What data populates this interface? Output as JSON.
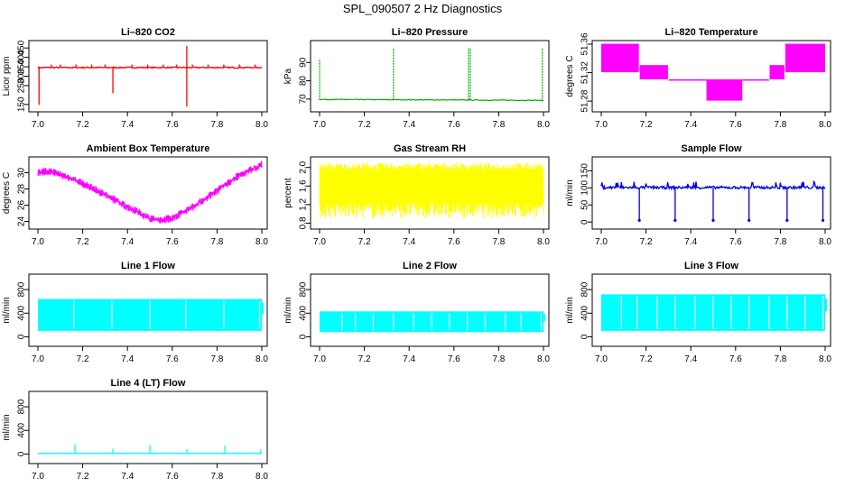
{
  "page_title": "SPL_090507  2 Hz Diagnostics",
  "chart_data": [
    {
      "id": "co2",
      "type": "line",
      "title": "Li–820 CO2",
      "ylabel": "Licor ppm",
      "color": "#ff0000",
      "xlim": [
        7.0,
        8.0
      ],
      "ylim": [
        130,
        470
      ],
      "xticks": [
        "7.0",
        "7.2",
        "7.4",
        "7.6",
        "7.8",
        "8.0"
      ],
      "yticks": [
        150,
        250,
        300,
        350,
        400,
        450
      ],
      "series": [
        {
          "x": [
            7.0,
            7.1,
            7.2,
            7.3,
            7.4,
            7.5,
            7.6,
            7.7,
            7.8,
            7.9,
            8.0
          ],
          "y": [
            345,
            346,
            347,
            346,
            347,
            346,
            348,
            347,
            346,
            347,
            345
          ]
        }
      ],
      "spikes_up": [
        7.06,
        7.1,
        7.17,
        7.24,
        7.3,
        7.42,
        7.49,
        7.56,
        7.62,
        7.69,
        7.76,
        7.83,
        7.9,
        7.97
      ],
      "spikes_down": [
        {
          "x": 7.005,
          "y": 148
        },
        {
          "x": 7.335,
          "y": 210
        },
        {
          "x": 7.665,
          "y": 140
        }
      ]
    },
    {
      "id": "pressure",
      "type": "line",
      "title": "Li–820 Pressure",
      "ylabel": "kPa",
      "color": "#00aa00",
      "xlim": [
        7.0,
        8.0
      ],
      "ylim": [
        65,
        100
      ],
      "xticks": [
        "7.0",
        "7.2",
        "7.4",
        "7.6",
        "7.8",
        "8.0"
      ],
      "yticks": [
        70,
        80,
        90
      ],
      "series": [
        {
          "x": [
            7.0,
            7.2,
            7.4,
            7.6,
            7.8,
            8.0
          ],
          "y": [
            69.8,
            69.7,
            69.6,
            69.5,
            69.5,
            69.3
          ]
        }
      ],
      "spikes_up": [
        7.0,
        7.33,
        7.665,
        7.665,
        7.995
      ]
    },
    {
      "id": "temperature",
      "type": "area",
      "title": "Li–820 Temperature",
      "ylabel": "degrees C",
      "color": "#ff00ff",
      "xlim": [
        7.0,
        8.0
      ],
      "ylim": [
        51.27,
        51.36
      ],
      "xticks": [
        "7.0",
        "7.2",
        "7.4",
        "7.6",
        "7.8",
        "8.0"
      ],
      "yticks": [
        "51.28",
        "51.32",
        "51.36"
      ],
      "bands": [
        {
          "x0": 7.0,
          "x1": 7.17,
          "y0": 51.32,
          "y1": 51.36
        },
        {
          "x0": 7.17,
          "x1": 7.3,
          "y0": 51.31,
          "y1": 51.33
        },
        {
          "x0": 7.3,
          "x1": 7.47,
          "y0": 51.31,
          "y1": 51.31
        },
        {
          "x0": 7.47,
          "x1": 7.63,
          "y0": 51.28,
          "y1": 51.31
        },
        {
          "x0": 7.63,
          "x1": 7.75,
          "y0": 51.31,
          "y1": 51.31
        },
        {
          "x0": 7.75,
          "x1": 7.82,
          "y0": 51.31,
          "y1": 51.33
        },
        {
          "x0": 7.82,
          "x1": 8.0,
          "y0": 51.32,
          "y1": 51.36
        }
      ]
    },
    {
      "id": "ambient",
      "type": "line",
      "title": "Ambient Box Temperature",
      "ylabel": "degrees C",
      "color": "#ff00ff",
      "xlim": [
        7.0,
        8.0
      ],
      "ylim": [
        23.5,
        31.5
      ],
      "xticks": [
        "7.0",
        "7.2",
        "7.4",
        "7.6",
        "7.8",
        "8.0"
      ],
      "yticks": [
        24,
        26,
        28,
        30
      ],
      "series": [
        {
          "x": [
            7.0,
            7.05,
            7.1,
            7.2,
            7.3,
            7.4,
            7.5,
            7.55,
            7.6,
            7.7,
            7.8,
            7.9,
            8.0
          ],
          "y": [
            30.0,
            30.2,
            29.8,
            28.7,
            27.3,
            25.8,
            24.4,
            24.1,
            24.4,
            25.9,
            27.8,
            29.7,
            31.0
          ]
        }
      ],
      "band": 0.5
    },
    {
      "id": "rh",
      "type": "area",
      "title": "Gas Stream RH",
      "ylabel": "percent",
      "color": "#ffff00",
      "xlim": [
        7.0,
        8.0
      ],
      "ylim": [
        0.75,
        2.15
      ],
      "xticks": [
        "7.0",
        "7.2",
        "7.4",
        "7.6",
        "7.8",
        "8.0"
      ],
      "yticks": [
        "0.8",
        "1.2",
        "1.6",
        "2.0"
      ],
      "series": [
        {
          "x": [
            7.0,
            8.0
          ],
          "y_low": [
            0.95,
            0.95
          ],
          "y_high": [
            2.05,
            2.05
          ]
        }
      ]
    },
    {
      "id": "sample",
      "type": "line",
      "title": "Sample Flow",
      "ylabel": "ml/min",
      "color": "#0000dd",
      "xlim": [
        7.0,
        8.0
      ],
      "ylim": [
        -10,
        180
      ],
      "xticks": [
        "7.0",
        "7.2",
        "7.4",
        "7.6",
        "7.8",
        "8.0"
      ],
      "yticks": [
        0,
        50,
        100,
        150
      ],
      "series": [
        {
          "x": [
            7.0,
            8.0
          ],
          "y": [
            102,
            100
          ]
        }
      ],
      "dips": [
        7.17,
        7.33,
        7.5,
        7.66,
        7.83,
        7.99
      ]
    },
    {
      "id": "line1",
      "type": "area",
      "title": "Line 1 Flow",
      "ylabel": "ml/min",
      "color": "#00ffff",
      "xlim": [
        7.0,
        8.0
      ],
      "ylim": [
        -100,
        1000
      ],
      "xticks": [
        "7.0",
        "7.2",
        "7.4",
        "7.6",
        "7.8",
        "8.0"
      ],
      "yticks": [
        0,
        400,
        800
      ],
      "series": [
        {
          "x": [
            7.0,
            8.0
          ],
          "y_low": [
            100,
            100
          ],
          "y_high": [
            640,
            640
          ]
        }
      ],
      "gaps": [
        7.16,
        7.33,
        7.5,
        7.66,
        7.83,
        7.99
      ]
    },
    {
      "id": "line2",
      "type": "area",
      "title": "Line 2 Flow",
      "ylabel": "ml/min",
      "color": "#00ffff",
      "xlim": [
        7.0,
        8.0
      ],
      "ylim": [
        -100,
        1000
      ],
      "xticks": [
        "7.0",
        "7.2",
        "7.4",
        "7.6",
        "7.8",
        "8.0"
      ],
      "yticks": [
        0,
        400,
        800
      ],
      "series": [
        {
          "x": [
            7.0,
            8.0
          ],
          "y_low": [
            80,
            80
          ],
          "y_high": [
            430,
            430
          ]
        }
      ],
      "gaps": [
        7.1,
        7.16,
        7.24,
        7.33,
        7.42,
        7.5,
        7.58,
        7.66,
        7.74,
        7.83,
        7.9,
        7.99
      ]
    },
    {
      "id": "line3",
      "type": "area",
      "title": "Line 3 Flow",
      "ylabel": "ml/min",
      "color": "#00ffff",
      "xlim": [
        7.0,
        8.0
      ],
      "ylim": [
        -100,
        1000
      ],
      "xticks": [
        "7.0",
        "7.2",
        "7.4",
        "7.6",
        "7.8",
        "8.0"
      ],
      "yticks": [
        0,
        400,
        800
      ],
      "series": [
        {
          "x": [
            7.0,
            8.0
          ],
          "y_low": [
            100,
            100
          ],
          "y_high": [
            720,
            720
          ]
        }
      ],
      "gaps": [
        7.09,
        7.16,
        7.25,
        7.33,
        7.42,
        7.5,
        7.58,
        7.66,
        7.75,
        7.83,
        7.91,
        7.99
      ]
    },
    {
      "id": "line4",
      "type": "line",
      "title": "Line 4 (LT) Flow",
      "ylabel": "ml/min",
      "color": "#00ffff",
      "xlim": [
        7.0,
        8.0
      ],
      "ylim": [
        -100,
        1000
      ],
      "xticks": [
        "7.0",
        "7.2",
        "7.4",
        "7.6",
        "7.8",
        "8.0"
      ],
      "yticks": [
        0,
        400,
        800
      ],
      "series": [
        {
          "x": [
            7.0,
            8.0
          ],
          "y": [
            10,
            10
          ]
        }
      ],
      "spikes_up": [
        {
          "x": 7.165,
          "y": 160
        },
        {
          "x": 7.335,
          "y": 90
        },
        {
          "x": 7.5,
          "y": 150
        },
        {
          "x": 7.665,
          "y": 80
        },
        {
          "x": 7.835,
          "y": 140
        },
        {
          "x": 7.995,
          "y": 80
        }
      ]
    }
  ]
}
